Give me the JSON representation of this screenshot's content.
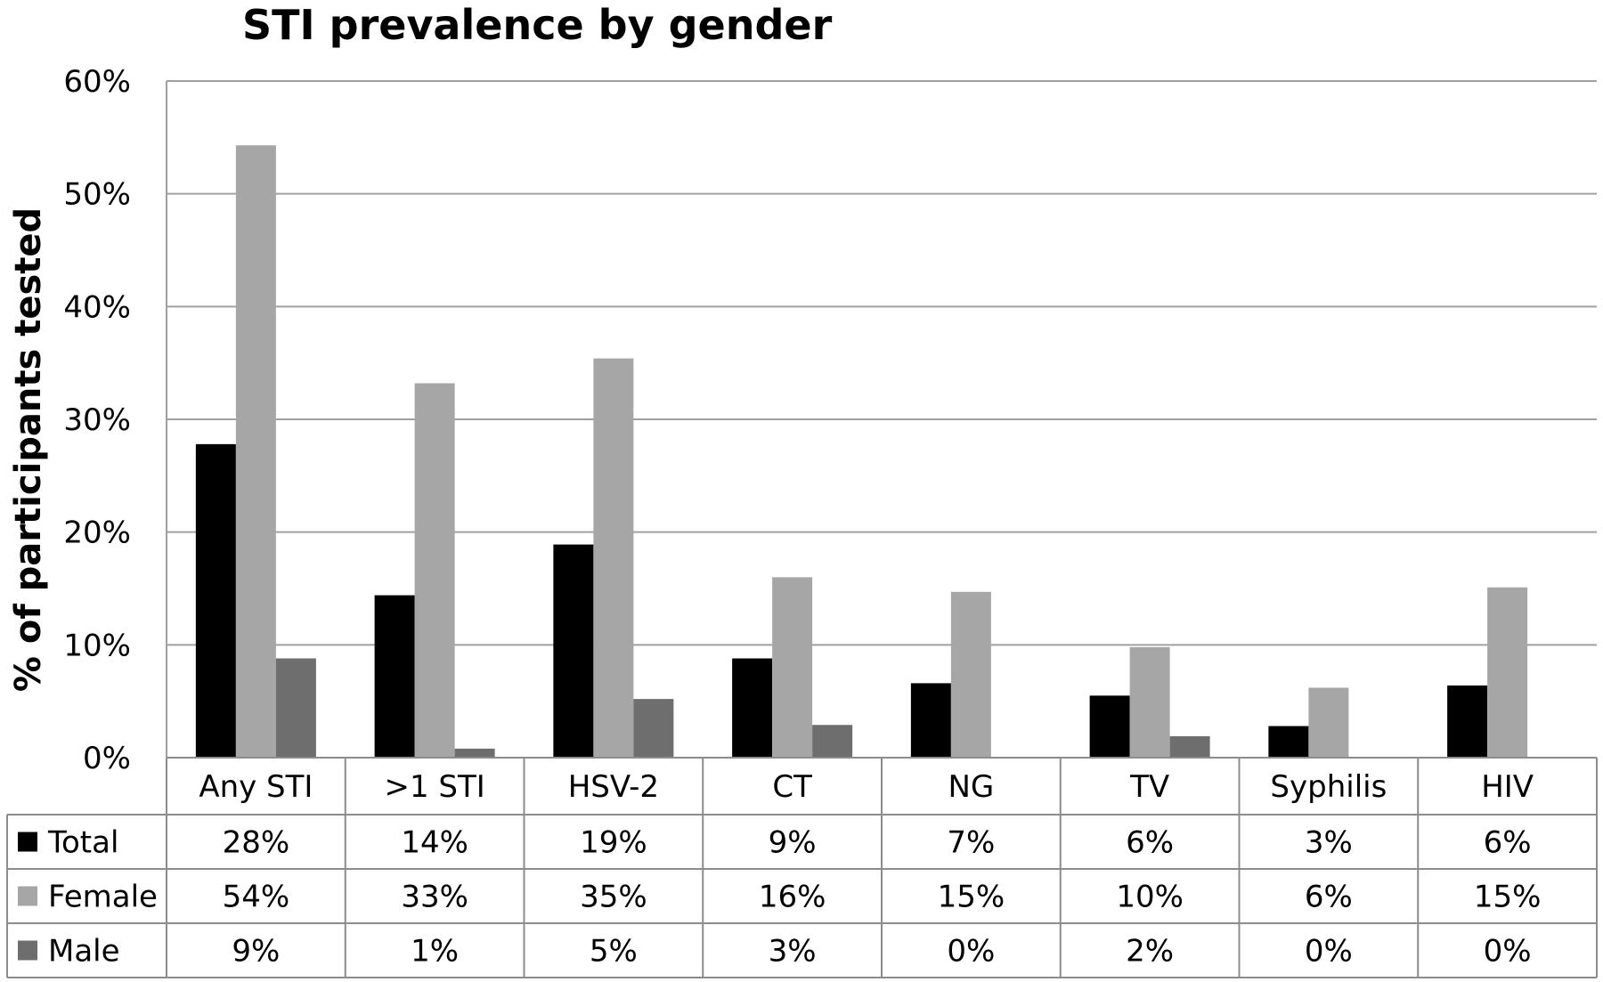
{
  "chart_data": {
    "type": "bar",
    "title": "STI prevalence by gender",
    "ylabel": "% of participants tested",
    "xlabel": "",
    "ylim": [
      0,
      60
    ],
    "y_ticks": [
      "0%",
      "10%",
      "20%",
      "30%",
      "40%",
      "50%",
      "60%"
    ],
    "y_tick_values": [
      0,
      10,
      20,
      30,
      40,
      50,
      60
    ],
    "grid": true,
    "legend": "data-table",
    "categories": [
      "Any STI",
      ">1 STI",
      "HSV-2",
      "CT",
      "NG",
      "TV",
      "Syphilis",
      "HIV"
    ],
    "series": [
      {
        "name": "Total",
        "color": "#000000",
        "values": [
          27.8,
          14.4,
          18.9,
          8.8,
          6.6,
          5.5,
          2.8,
          6.4
        ],
        "labels": [
          "28%",
          "14%",
          "19%",
          "9%",
          "7%",
          "6%",
          "3%",
          "6%"
        ]
      },
      {
        "name": "Female",
        "color": "#a6a6a6",
        "values": [
          54.3,
          33.2,
          35.4,
          16.0,
          14.7,
          9.8,
          6.2,
          15.1
        ],
        "labels": [
          "54%",
          "33%",
          "35%",
          "16%",
          "15%",
          "10%",
          "6%",
          "15%"
        ]
      },
      {
        "name": "Male",
        "color": "#6e6e6e",
        "values": [
          8.8,
          0.8,
          5.2,
          2.9,
          0,
          1.9,
          0,
          0
        ],
        "labels": [
          "9%",
          "1%",
          "5%",
          "3%",
          "0%",
          "2%",
          "0%",
          "0%"
        ]
      }
    ]
  }
}
